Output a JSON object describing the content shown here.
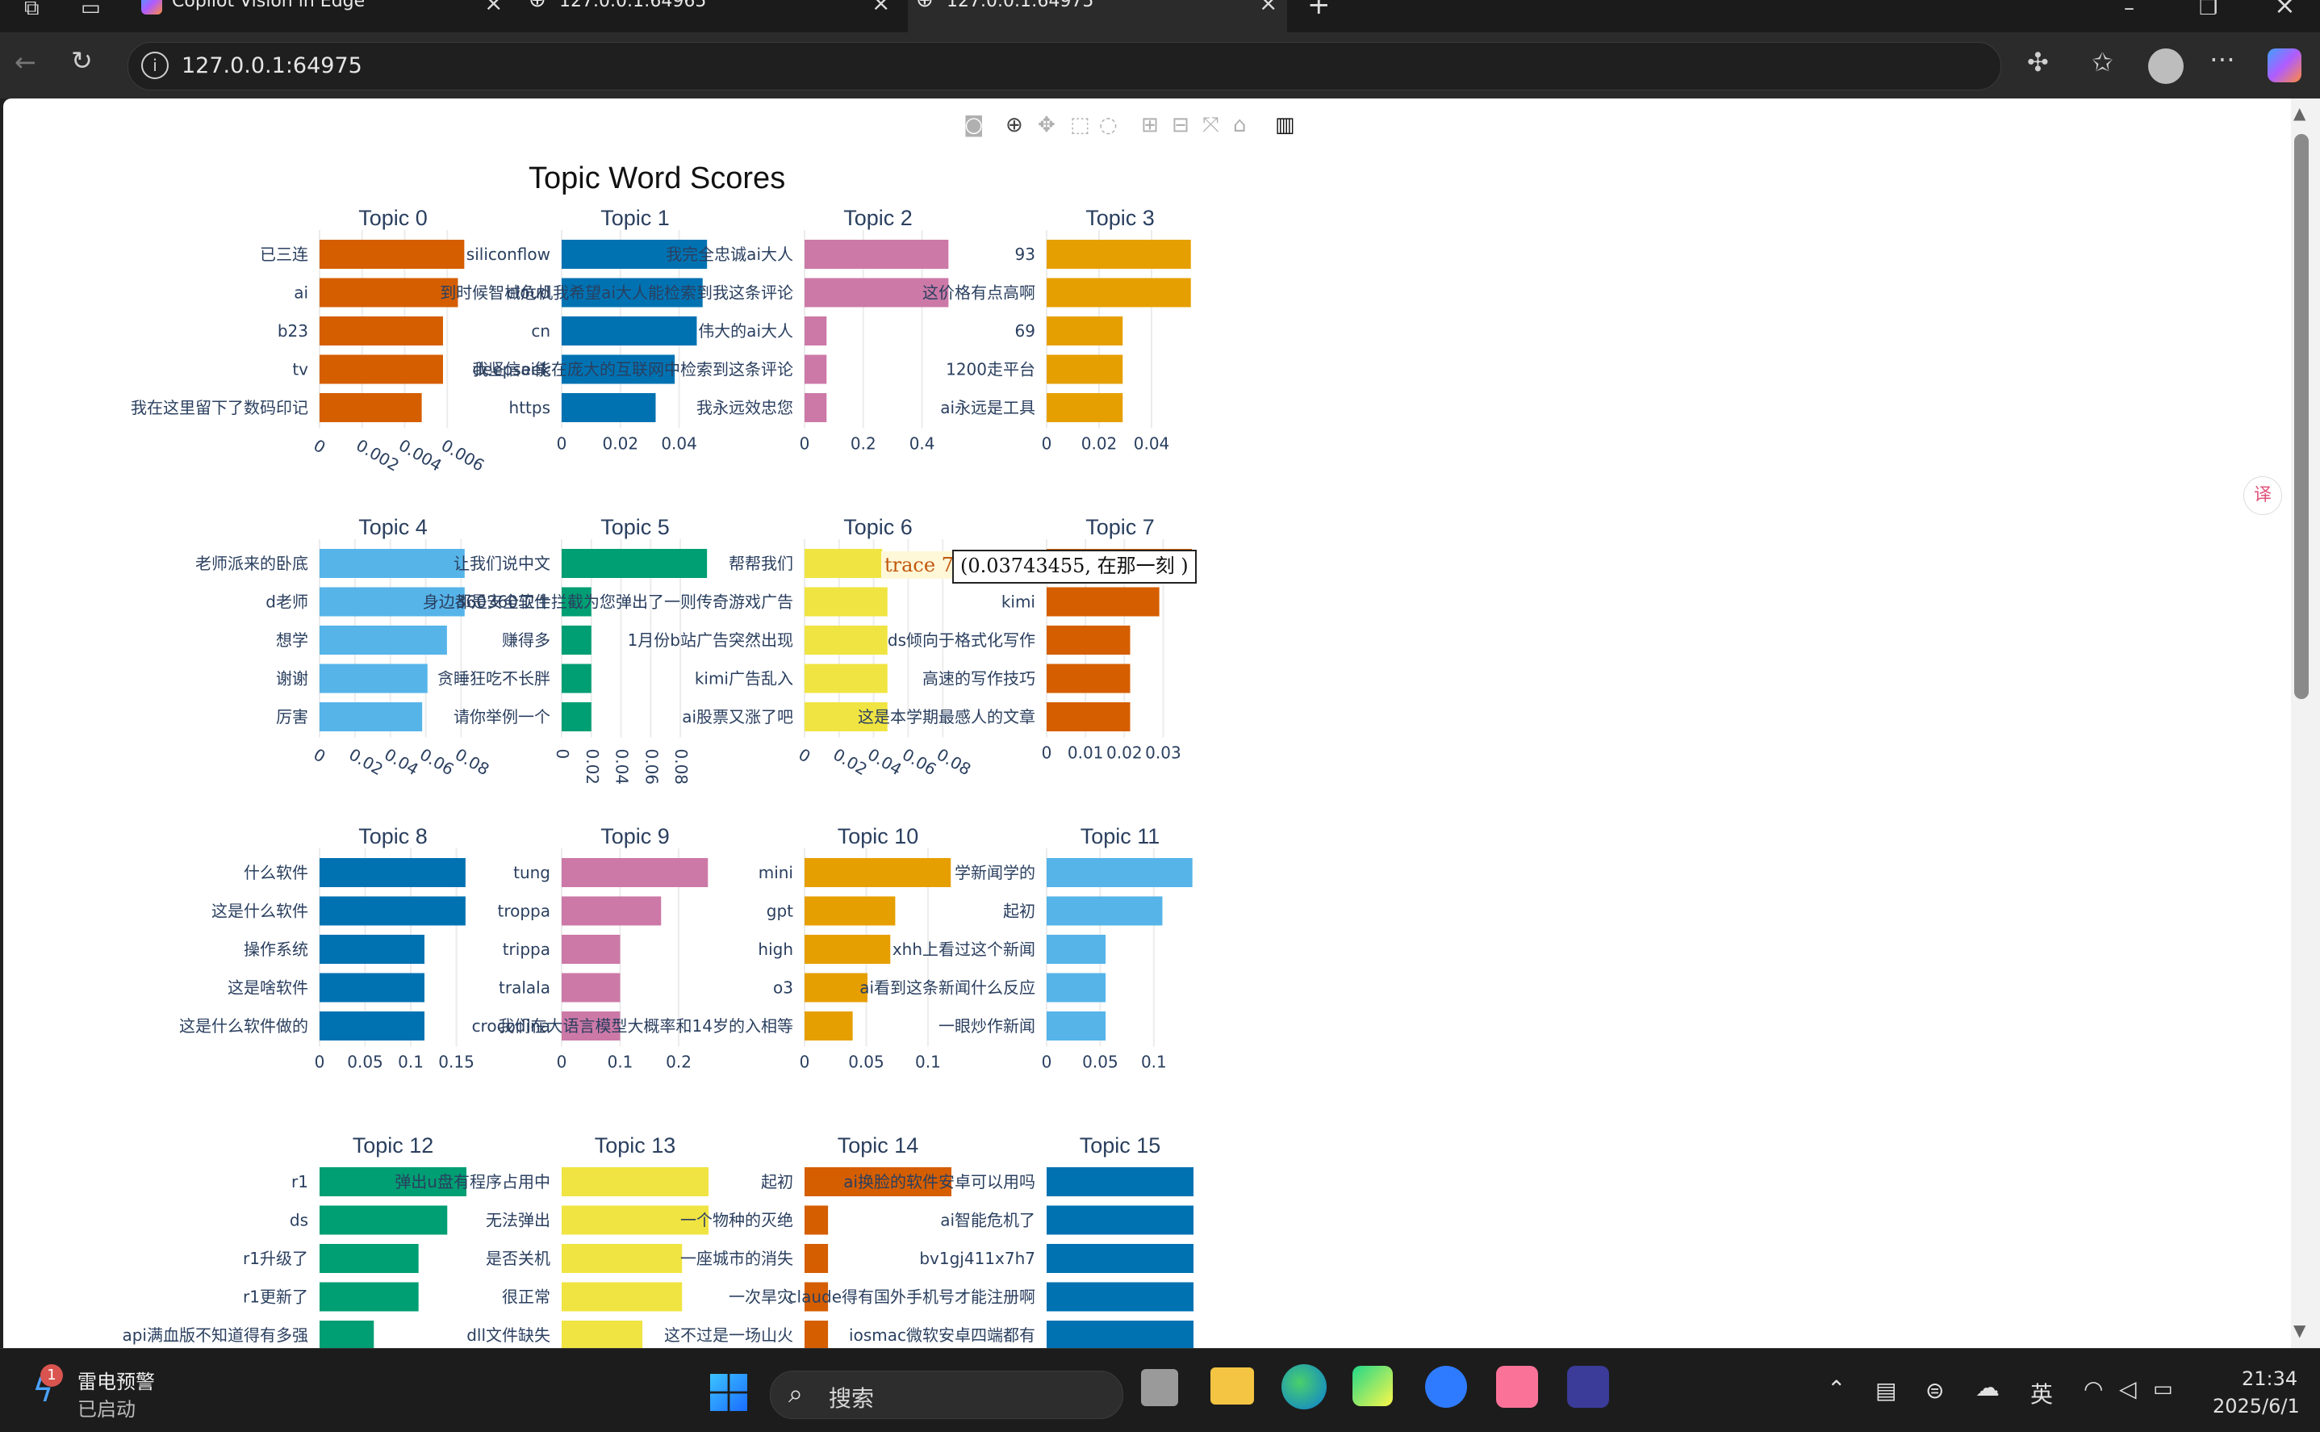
{
  "browser": {
    "tabs": [
      {
        "label": "Copilot Vision in Edge"
      },
      {
        "label": "127.0.0.1:64965"
      },
      {
        "label": "127.0.0.1:64975"
      }
    ],
    "url": "127.0.0.1:64975"
  },
  "hover": {
    "trace": "trace 7",
    "text": "(0.03743455, 在那一刻  )"
  },
  "taskbar": {
    "notify_title": "雷电预警",
    "notify_sub": "已启动",
    "notify_badge": "1",
    "search_placeholder": "搜索",
    "ime": "英",
    "time": "21:34",
    "date": "2025/6/1"
  },
  "chart_data": {
    "type": "bar",
    "orientation": "horizontal",
    "title": "Topic Word Scores",
    "subplots": [
      {
        "name": "Topic 0",
        "color": "#D55E00",
        "words": [
          "已三连",
          "ai",
          "b23",
          "tv",
          "我在这里留下了数码印记"
        ],
        "values": [
          0.0068,
          0.0065,
          0.0058,
          0.0058,
          0.0048
        ],
        "ticks": [
          0,
          0.002,
          0.004,
          0.006
        ],
        "xmax": 0.0069,
        "tick_rot": true
      },
      {
        "name": "Topic 1",
        "color": "#0072B2",
        "words": [
          "siliconflow",
          "cloud",
          "cn",
          "deepseek",
          "https"
        ],
        "values": [
          0.0495,
          0.048,
          0.046,
          0.0385,
          0.032
        ],
        "ticks": [
          0,
          0.02,
          0.04
        ],
        "xmax": 0.05
      },
      {
        "name": "Topic 2",
        "color": "#CC79A7",
        "words": [
          "我完全忠诚ai大人",
          "到时候智械危机我希望ai大人能检索到我这条评论",
          "伟大的ai大人",
          "我坚信ai能在庞大的互联网中检索到这条评论",
          "我永远效忠您"
        ],
        "values": [
          0.49,
          0.49,
          0.075,
          0.075,
          0.075
        ],
        "ticks": [
          0,
          0.2,
          0.4
        ],
        "xmax": 0.5
      },
      {
        "name": "Topic 3",
        "color": "#E69F00",
        "words": [
          "93",
          "这价格有点高啊",
          "69",
          "1200走平台",
          "ai永远是工具"
        ],
        "values": [
          0.055,
          0.055,
          0.029,
          0.029,
          0.029
        ],
        "ticks": [
          0,
          0.02,
          0.04
        ],
        "xmax": 0.056
      },
      {
        "name": "Topic 4",
        "color": "#56B4E9",
        "words": [
          "老师派来的卧底",
          "d老师",
          "想学",
          "谢谢",
          "厉害"
        ],
        "values": [
          0.082,
          0.082,
          0.072,
          0.061,
          0.058
        ],
        "ticks": [
          0,
          0.02,
          0.04,
          0.06,
          0.08
        ],
        "xmax": 0.083,
        "tick_rot": true
      },
      {
        "name": "Topic 5",
        "color": "#009E73",
        "words": [
          "让我们说中文",
          "身边都是360软件",
          "赚得多",
          "贪睡狂吃不长胖",
          "请你举例一个"
        ],
        "values": [
          0.098,
          0.02,
          0.02,
          0.02,
          0.02
        ],
        "ticks": [
          0,
          0.02,
          0.04,
          0.06,
          0.08
        ],
        "xmax": 0.099,
        "tick_rot_90": true
      },
      {
        "name": "Topic 6",
        "color": "#F0E442",
        "words": [
          "帮帮我们",
          "360安全卫士拦截为您弹出了一则传奇游戏广告",
          "1月份b站广告突然出现",
          "kimi广告乱入",
          "ai股票又涨了吧"
        ],
        "values": [
          0.045,
          0.048,
          0.048,
          0.048,
          0.048
        ],
        "ticks": [
          0,
          0.02,
          0.04,
          0.06,
          0.08
        ],
        "xmax": 0.085,
        "tick_rot": true
      },
      {
        "name": "Topic 7",
        "color": "#D55E00",
        "words": [
          "在那一刻",
          "kimi",
          "ds倾向于格式化写作",
          "高速的写作技巧",
          "这是本学期最感人的文章"
        ],
        "values": [
          0.0374,
          0.029,
          0.0215,
          0.0215,
          0.0215
        ],
        "ticks": [
          0,
          0.01,
          0.02,
          0.03
        ],
        "xmax": 0.0378
      },
      {
        "name": "Topic 8",
        "color": "#0072B2",
        "words": [
          "什么软件",
          "这是什么软件",
          "操作系统",
          "这是啥软件",
          "这是什么软件做的"
        ],
        "values": [
          0.16,
          0.16,
          0.115,
          0.115,
          0.115
        ],
        "ticks": [
          0,
          0.05,
          0.1,
          0.15
        ],
        "xmax": 0.161
      },
      {
        "name": "Topic 9",
        "color": "#CC79A7",
        "words": [
          "tung",
          "troppa",
          "trippa",
          "tralala",
          "crocodina"
        ],
        "values": [
          0.25,
          0.17,
          0.1,
          0.1,
          0.1
        ],
        "ticks": [
          0,
          0.1,
          0.2
        ],
        "xmax": 0.251
      },
      {
        "name": "Topic 10",
        "color": "#E69F00",
        "words": [
          "mini",
          "gpt",
          "high",
          "o3",
          "我们在大语言模型大概率和14岁的入相等"
        ],
        "values": [
          0.1185,
          0.0735,
          0.0695,
          0.051,
          0.039
        ],
        "ticks": [
          0,
          0.05,
          0.1
        ],
        "xmax": 0.119
      },
      {
        "name": "Topic 11",
        "color": "#56B4E9",
        "words": [
          "学新闻学的",
          "起初",
          "xhh上看过这个新闻",
          "ai看到这条新闻什么反应",
          "一眼炒作新闻"
        ],
        "values": [
          0.136,
          0.108,
          0.055,
          0.055,
          0.055
        ],
        "ticks": [
          0,
          0.05,
          0.1
        ],
        "xmax": 0.137
      },
      {
        "name": "Topic 12",
        "color": "#009E73",
        "words": [
          "r1",
          "ds",
          "r1升级了",
          "r1更新了",
          "api满血版不知道得有多强"
        ],
        "values": [
          0.046,
          0.04,
          0.031,
          0.031,
          0.017
        ],
        "ticks": [],
        "xmax": 0.046
      },
      {
        "name": "Topic 13",
        "color": "#F0E442",
        "words": [
          "弹出u盘有程序占用中",
          "无法弹出",
          "是否关机",
          "很正常",
          "dll文件缺失"
        ],
        "values": [
          0.1,
          0.1,
          0.082,
          0.082,
          0.055
        ],
        "ticks": [],
        "xmax": 0.1
      },
      {
        "name": "Topic 14",
        "color": "#D55E00",
        "words": [
          "起初",
          "一个物种的灭绝",
          "一座城市的消失",
          "一次旱灾",
          "这不过是一场山火"
        ],
        "values": [
          0.1,
          0.016,
          0.016,
          0.016,
          0.016
        ],
        "ticks": [],
        "xmax": 0.1
      },
      {
        "name": "Topic 15",
        "color": "#0072B2",
        "words": [
          "ai换脸的软件安卓可以用吗",
          "ai智能危机了",
          "bv1gj411x7h7",
          "claude得有国外手机号才能注册啊",
          "iosmac微软安卓四端都有"
        ],
        "values": [
          0.1,
          0.1,
          0.1,
          0.1,
          0.1
        ],
        "ticks": [],
        "xmax": 0.1
      }
    ]
  }
}
